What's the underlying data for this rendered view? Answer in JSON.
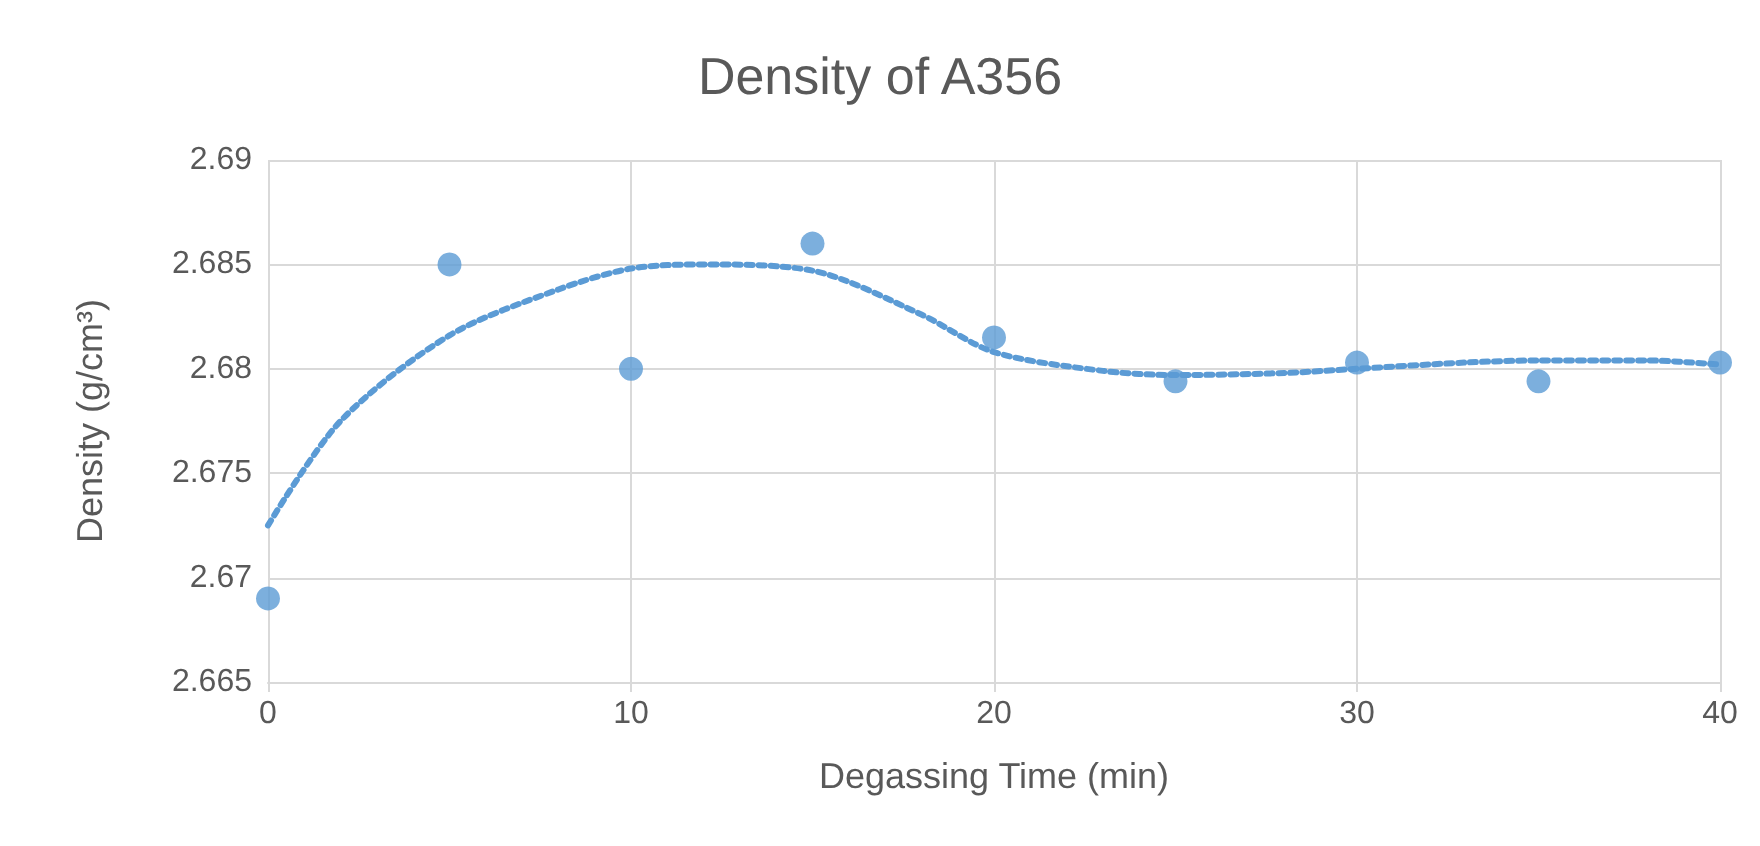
{
  "chart_data": {
    "type": "scatter",
    "title": "Density of A356",
    "xlabel": "Degassing Time (min)",
    "ylabel": "Density (g/cm³)",
    "x": [
      0,
      5,
      10,
      15,
      20,
      25,
      30,
      35,
      40
    ],
    "series": [
      {
        "type": "scatter",
        "color": "#5b9bd5",
        "values": [
          2.669,
          2.685,
          2.68,
          2.686,
          2.6815,
          2.6794,
          2.6803,
          2.6794,
          2.6803
        ]
      },
      {
        "type": "line",
        "color": "#5b9bd5",
        "line_style": "dotted",
        "marker": "none",
        "x": [
          0,
          2,
          5,
          8,
          10,
          12,
          15,
          18,
          20,
          23,
          25,
          28,
          30,
          33,
          35,
          38,
          40
        ],
        "values": [
          2.6725,
          2.6775,
          2.6816,
          2.6838,
          2.6848,
          2.685,
          2.6847,
          2.6826,
          2.6808,
          2.6799,
          2.6797,
          2.6798,
          2.68,
          2.6803,
          2.6804,
          2.6804,
          2.6802
        ]
      }
    ],
    "xlim": [
      0,
      40
    ],
    "xticks": [
      0,
      10,
      20,
      30,
      40
    ],
    "ylim": [
      2.665,
      2.69
    ],
    "yticks": [
      2.665,
      2.67,
      2.675,
      2.68,
      2.685,
      2.69
    ],
    "grid": true,
    "marker": "circle"
  }
}
